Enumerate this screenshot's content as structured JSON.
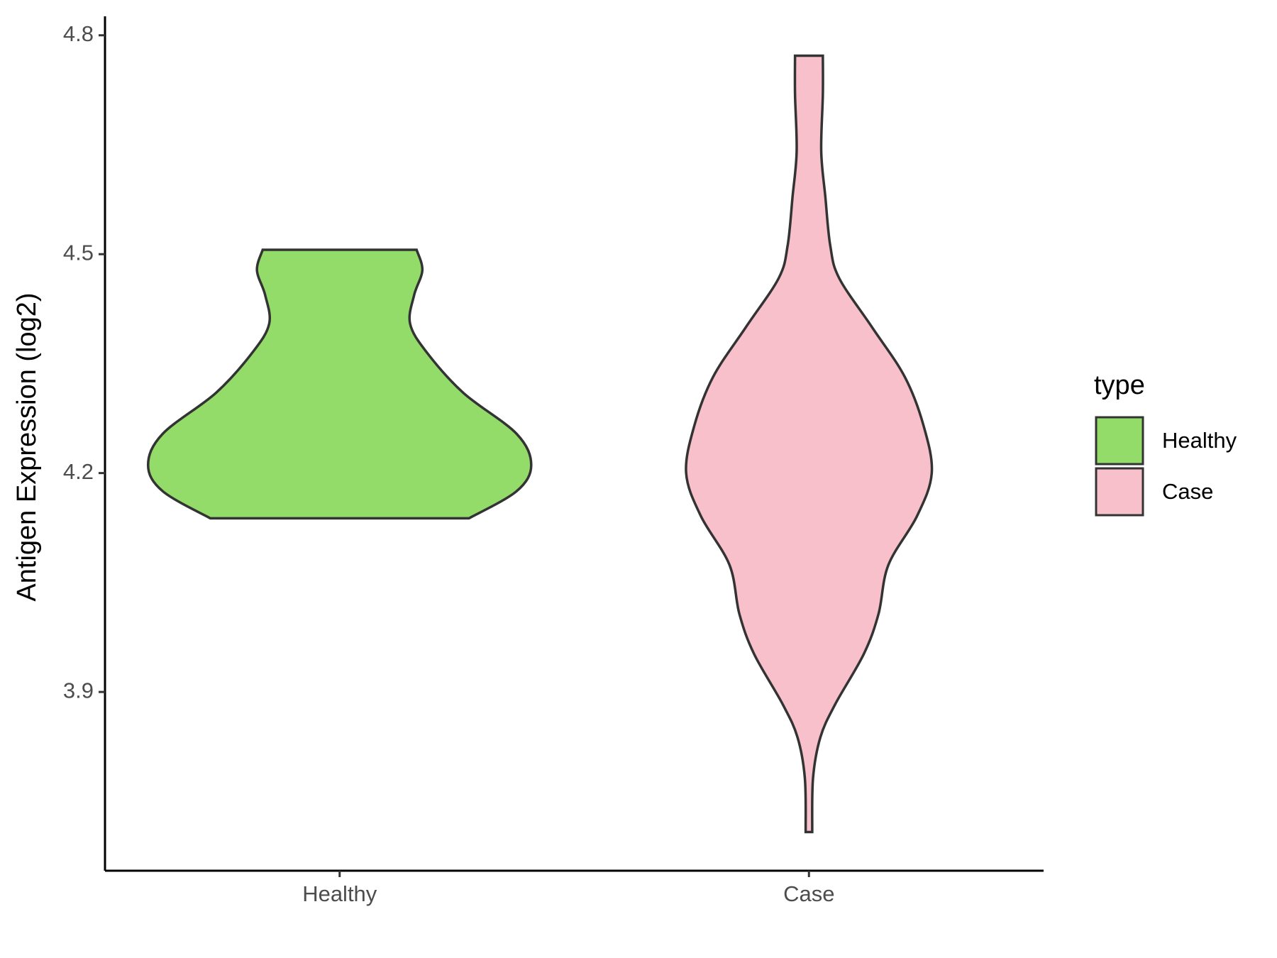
{
  "chart_data": {
    "type": "violin",
    "y_label": "Antigen Expression (log2)",
    "categories": [
      "Healthy",
      "Case"
    ],
    "legend_title": "type",
    "legend_position": "right",
    "ylim": [
      3.655,
      4.826
    ],
    "yticks": [
      3.9,
      4.2,
      4.5,
      4.8
    ],
    "series": [
      {
        "name": "Healthy",
        "color": "#93dc6a",
        "y": [
          4.506,
          4.478,
          4.444,
          4.405,
          4.366,
          4.31,
          4.254,
          4.211,
          4.175,
          4.138
        ],
        "density": [
          94,
          101,
          91,
          86,
          106,
          151,
          216,
          234,
          216,
          158
        ]
      },
      {
        "name": "Case",
        "color": "#f7c0cb",
        "y": [
          4.772,
          4.719,
          4.641,
          4.579,
          4.512,
          4.467,
          4.4,
          4.332,
          4.265,
          4.2,
          4.141,
          4.074,
          4.007,
          3.952,
          3.883,
          3.838,
          3.782,
          3.708
        ],
        "density": [
          17,
          17,
          15,
          20,
          26,
          37,
          77,
          117,
          140,
          150,
          132,
          97,
          85,
          67,
          32,
          14,
          5,
          4
        ]
      }
    ]
  }
}
